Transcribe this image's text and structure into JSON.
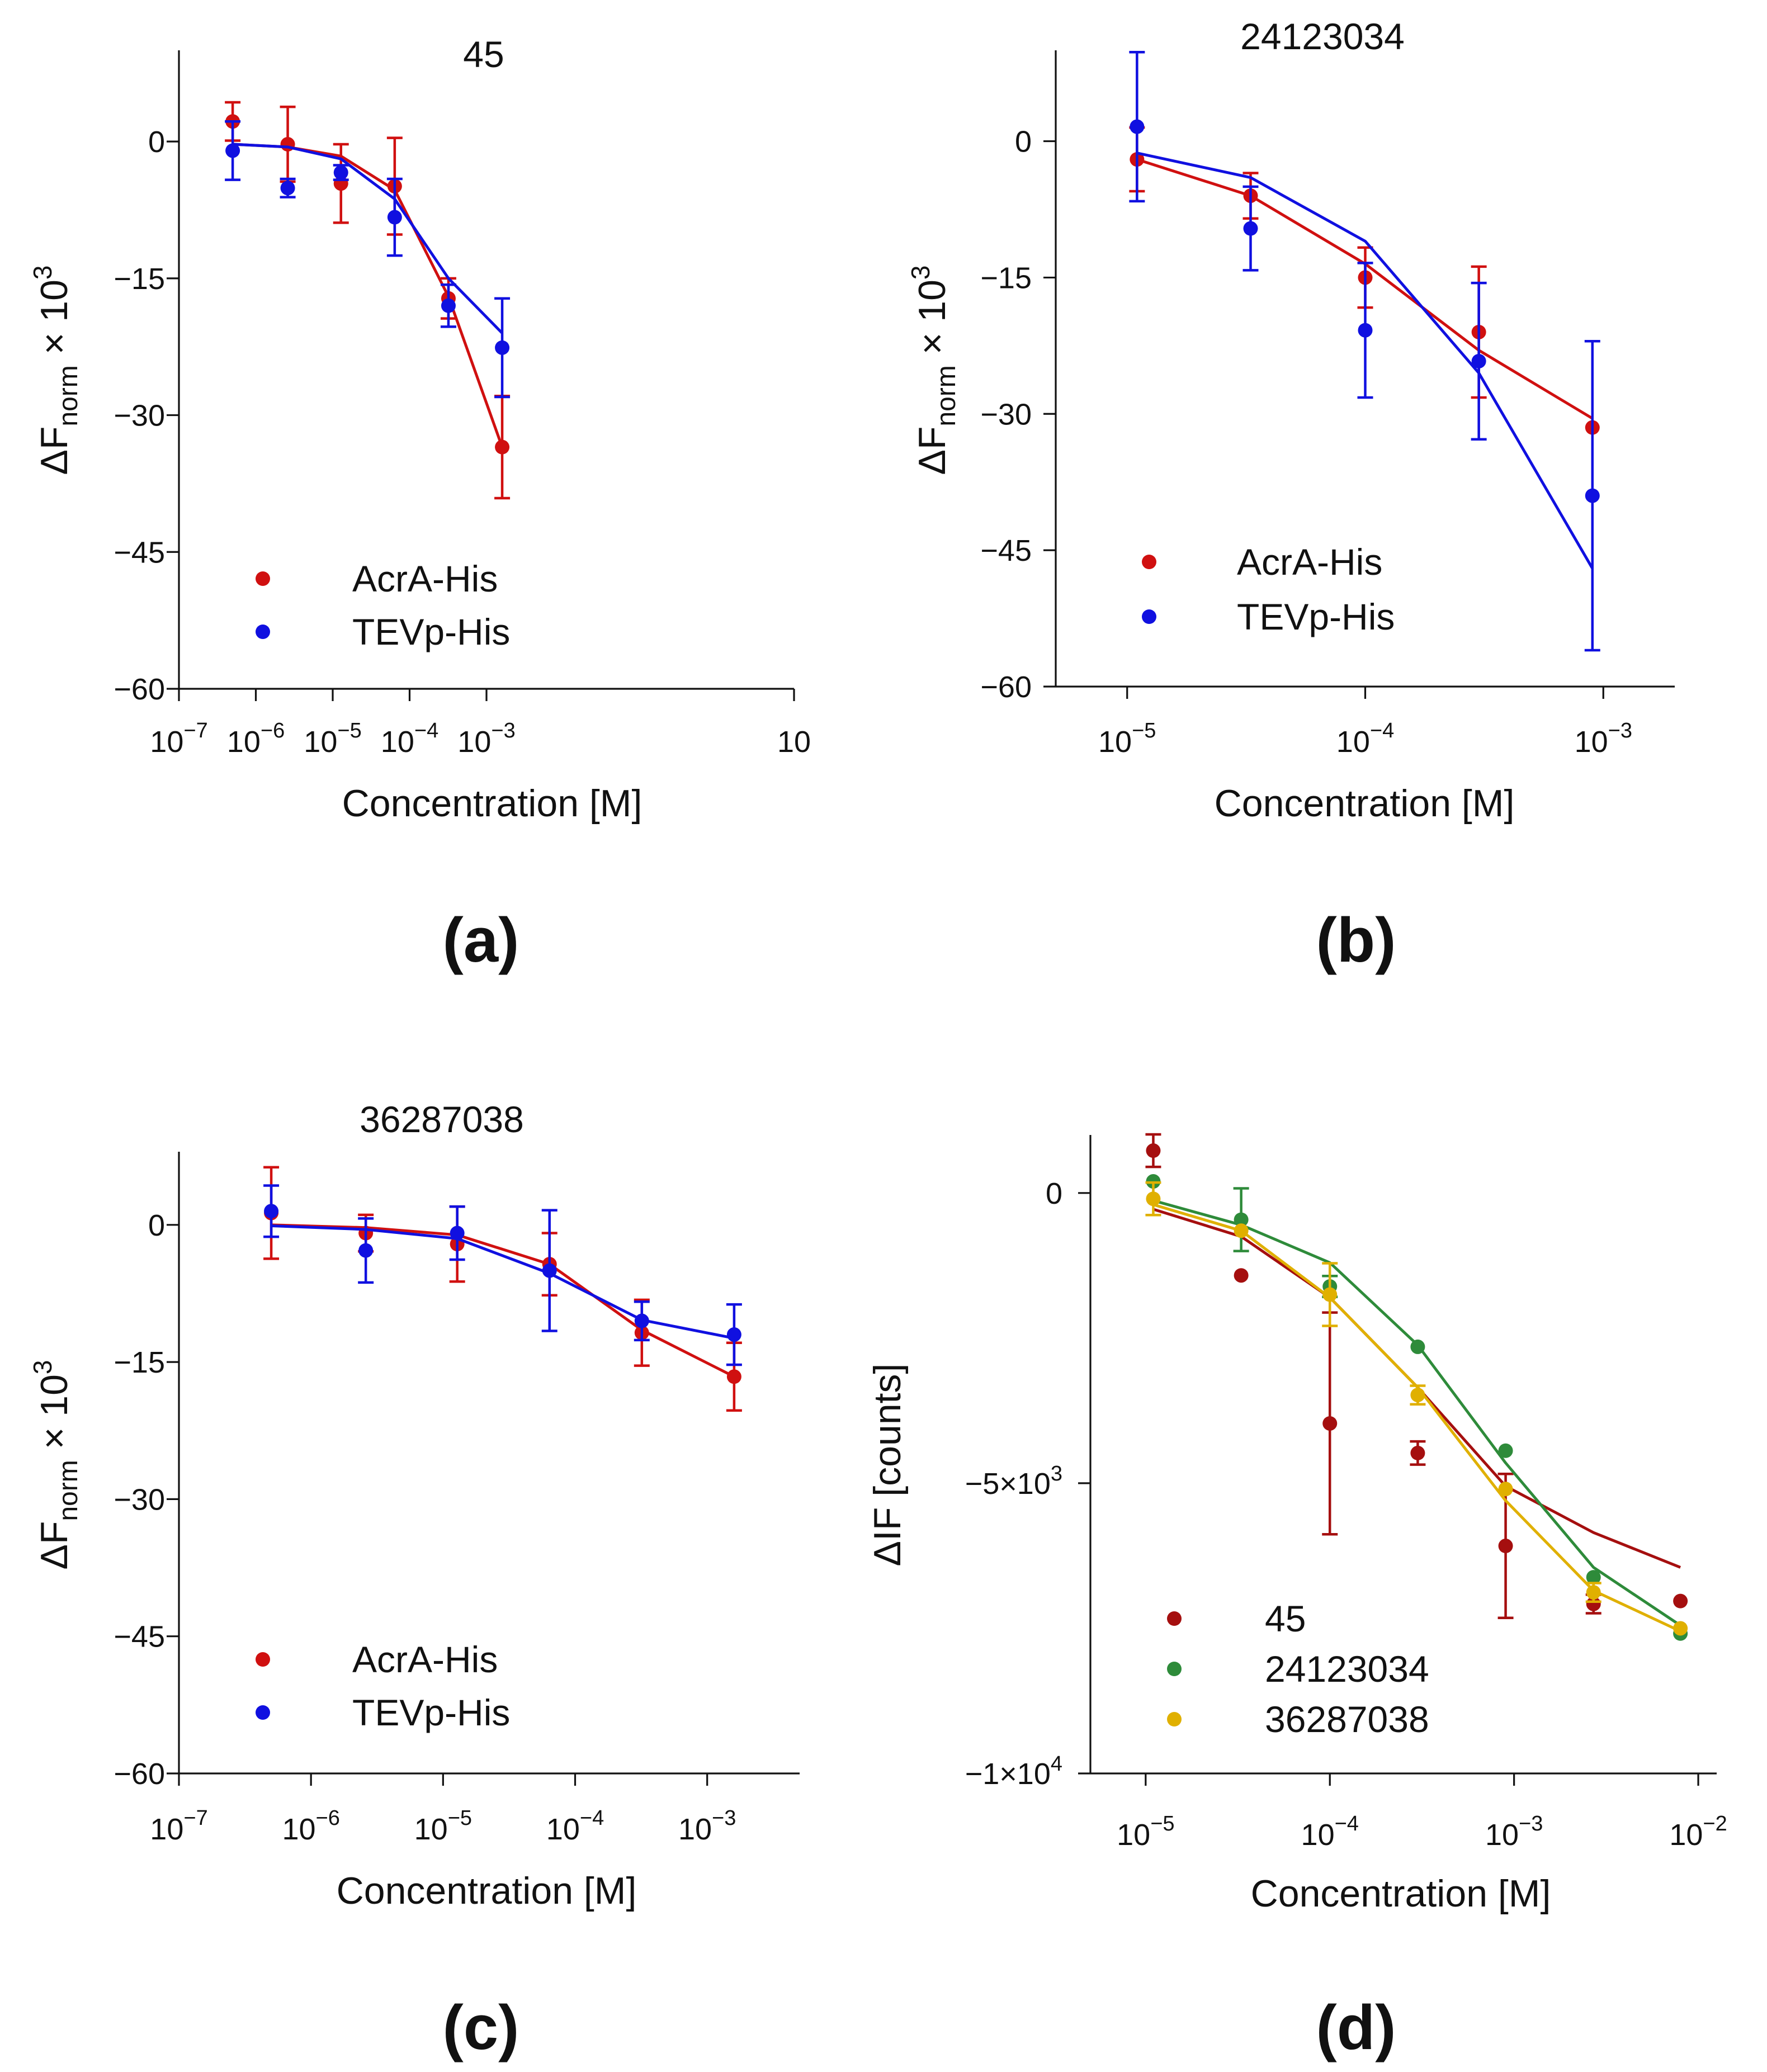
{
  "chart_data": [
    {
      "panel_label": "(a)",
      "type": "scatter",
      "title": "45",
      "xlabel": "Concentration [M]",
      "ylabel": "ΔFnorm × 10³",
      "ylabel_parts": {
        "base": "ΔF",
        "sub": "norm",
        "mid": " × 10",
        "sup": "3"
      },
      "xscale": "log",
      "xlim_log10": [
        -7,
        1
      ],
      "ylim": [
        -60,
        10
      ],
      "xticks": [
        {
          "exp": -7,
          "base": "10",
          "sup": "−7"
        },
        {
          "exp": -6,
          "base": "10",
          "sup": "−6"
        },
        {
          "exp": -5,
          "base": "10",
          "sup": "−5"
        },
        {
          "exp": -4,
          "base": "10",
          "sup": "−4"
        },
        {
          "exp": -3,
          "base": "10",
          "sup": "−3"
        },
        {
          "exp": 1,
          "base": "10",
          "sup": ""
        }
      ],
      "yticks": [
        {
          "value": 0,
          "label": "0"
        },
        {
          "value": -15,
          "label": "−15"
        },
        {
          "value": -30,
          "label": "−30"
        },
        {
          "value": -45,
          "label": "−45"
        },
        {
          "value": -60,
          "label": "−60"
        }
      ],
      "legend_position": "bottom-left",
      "series": [
        {
          "name": "AcrA-His",
          "color": "#d01010",
          "x": [
            5e-07,
            2.6e-06,
            1.28e-05,
            6.4e-05,
            0.00032,
            0.0016
          ],
          "y": [
            2.2,
            -0.3,
            -4.6,
            -4.9,
            -17.2,
            -33.5
          ],
          "err": [
            2.1,
            4.1,
            4.3,
            5.3,
            2.2,
            5.6
          ],
          "fit_y": [
            -0.3,
            -0.6,
            -1.6,
            -5.3,
            -17.0,
            -33.5
          ]
        },
        {
          "name": "TEVp-His",
          "color": "#1010e0",
          "x": [
            5e-07,
            2.6e-06,
            1.28e-05,
            6.4e-05,
            0.00032,
            0.0016
          ],
          "y": [
            -1.0,
            -5.1,
            -3.4,
            -8.3,
            -18.0,
            -22.6
          ],
          "err": [
            3.2,
            1.0,
            0.8,
            4.2,
            2.3,
            5.4
          ],
          "fit_y": [
            -0.3,
            -0.6,
            -1.9,
            -6.3,
            -15.0,
            -21.0
          ]
        }
      ]
    },
    {
      "panel_label": "(b)",
      "type": "scatter",
      "title": "24123034",
      "xlabel": "Concentration [M]",
      "ylabel": "ΔFnorm × 10³",
      "ylabel_parts": {
        "base": "ΔF",
        "sub": "norm",
        "mid": " × 10",
        "sup": "3"
      },
      "xscale": "log",
      "xlim_log10": [
        -5.3,
        -2.7
      ],
      "ylim": [
        -60,
        10
      ],
      "xticks": [
        {
          "exp": -5,
          "base": "10",
          "sup": "−5"
        },
        {
          "exp": -4,
          "base": "10",
          "sup": "−4"
        },
        {
          "exp": -3,
          "base": "10",
          "sup": "−3"
        }
      ],
      "yticks": [
        {
          "value": 0,
          "label": "0"
        },
        {
          "value": -15,
          "label": "−15"
        },
        {
          "value": -30,
          "label": "−30"
        },
        {
          "value": -45,
          "label": "−45"
        },
        {
          "value": -60,
          "label": "−60"
        }
      ],
      "legend_position": "bottom-left",
      "series": [
        {
          "name": "AcrA-His",
          "color": "#d01010",
          "x": [
            1.1e-05,
            3.3e-05,
            0.0001,
            0.0003,
            0.0009
          ],
          "y": [
            -2.0,
            -6.0,
            -15.0,
            -21.0,
            -31.5
          ],
          "err": [
            3.5,
            2.5,
            3.3,
            7.2,
            0
          ],
          "fit_y": [
            -2.0,
            -6.0,
            -13.5,
            -23.0,
            -30.5
          ]
        },
        {
          "name": "TEVp-His",
          "color": "#1010e0",
          "x": [
            1.1e-05,
            3.3e-05,
            0.0001,
            0.0003,
            0.0009
          ],
          "y": [
            1.6,
            -9.6,
            -20.8,
            -24.2,
            -39.0
          ],
          "err": [
            8.2,
            4.6,
            7.4,
            8.6,
            17.0
          ],
          "fit_y": [
            -1.3,
            -4.0,
            -11.0,
            -25.5,
            -47.0
          ]
        }
      ]
    },
    {
      "panel_label": "(c)",
      "type": "scatter",
      "title": "36287038",
      "xlabel": "Concentration [M]",
      "ylabel": "ΔFnorm × 10³",
      "ylabel_parts": {
        "base": "ΔF",
        "sub": "norm",
        "mid": " × 10",
        "sup": "3"
      },
      "xscale": "log",
      "xlim_log10": [
        -7,
        -2.3
      ],
      "ylim": [
        -60,
        8
      ],
      "xticks": [
        {
          "exp": -7,
          "base": "10",
          "sup": "−7"
        },
        {
          "exp": -6,
          "base": "10",
          "sup": "−6"
        },
        {
          "exp": -5,
          "base": "10",
          "sup": "−5"
        },
        {
          "exp": -4,
          "base": "10",
          "sup": "−4"
        },
        {
          "exp": -3,
          "base": "10",
          "sup": "−3"
        }
      ],
      "yticks": [
        {
          "value": 0,
          "label": "0"
        },
        {
          "value": -15,
          "label": "−15"
        },
        {
          "value": -30,
          "label": "−30"
        },
        {
          "value": -45,
          "label": "−45"
        },
        {
          "value": -60,
          "label": "−60"
        }
      ],
      "legend_position": "bottom-left",
      "series": [
        {
          "name": "AcrA-His",
          "color": "#d01010",
          "x": [
            5e-07,
            2.6e-06,
            1.28e-05,
            6.4e-05,
            0.00032,
            0.0016
          ],
          "y": [
            1.3,
            -0.9,
            -2.1,
            -4.3,
            -11.8,
            -16.6
          ],
          "err": [
            5.0,
            2.0,
            4.1,
            3.4,
            3.6,
            3.7
          ],
          "fit_y": [
            0.0,
            -0.3,
            -1.1,
            -4.3,
            -11.5,
            -16.6
          ]
        },
        {
          "name": "TEVp-His",
          "color": "#1010e0",
          "x": [
            5e-07,
            2.6e-06,
            1.28e-05,
            6.4e-05,
            0.00032,
            0.0016
          ],
          "y": [
            1.5,
            -2.8,
            -0.9,
            -5.0,
            -10.5,
            -12.0
          ],
          "err": [
            2.8,
            3.5,
            2.9,
            6.6,
            2.1,
            3.3
          ],
          "fit_y": [
            -0.1,
            -0.5,
            -1.5,
            -5.3,
            -10.4,
            -12.4
          ]
        }
      ]
    },
    {
      "panel_label": "(d)",
      "type": "scatter",
      "title": "",
      "xlabel": "Concentration [M]",
      "ylabel": "ΔIF [counts]",
      "xscale": "log",
      "xlim_log10": [
        -5.3,
        -1.9
      ],
      "ylim": [
        -10000,
        1000
      ],
      "xticks": [
        {
          "exp": -5,
          "base": "10",
          "sup": "−5"
        },
        {
          "exp": -4,
          "base": "10",
          "sup": "−4"
        },
        {
          "exp": -3,
          "base": "10",
          "sup": "−3"
        },
        {
          "exp": -2,
          "base": "10",
          "sup": "−2"
        }
      ],
      "yticks": [
        {
          "value": 0,
          "label": "0"
        },
        {
          "value": -5000,
          "label": "−5×10",
          "sup": "3"
        },
        {
          "value": -10000,
          "label": "−1×10",
          "sup": "4"
        }
      ],
      "legend_position": "bottom-left",
      "series": [
        {
          "name": "45",
          "color": "#a50f0f",
          "x": [
            1.1e-05,
            3.3e-05,
            0.0001,
            0.0003,
            0.0009,
            0.0027,
            0.008
          ],
          "y": [
            730,
            -1420,
            -3970,
            -4480,
            -6080,
            -7080,
            -7030
          ],
          "err": [
            280,
            0,
            1910,
            200,
            1240,
            160,
            0
          ],
          "fit_y": [
            -280,
            -750,
            -1800,
            -3350,
            -5050,
            -5850,
            -6450
          ]
        },
        {
          "name": "24123034",
          "color": "#2e8b3a",
          "x": [
            1.1e-05,
            3.3e-05,
            0.0001,
            0.0003,
            0.0009,
            0.0027,
            0.008
          ],
          "y": [
            200,
            -460,
            -1610,
            -2650,
            -4440,
            -6620,
            -7590
          ],
          "err": [
            0,
            540,
            180,
            0,
            0,
            0,
            0
          ],
          "fit_y": [
            -130,
            -550,
            -1200,
            -2620,
            -4650,
            -6450,
            -7450
          ]
        },
        {
          "name": "36287038",
          "color": "#e0b000",
          "x": [
            1.1e-05,
            3.3e-05,
            0.0001,
            0.0003,
            0.0009,
            0.0027,
            0.008
          ],
          "y": [
            -100,
            -650,
            -1750,
            -3480,
            -5100,
            -6880,
            -7500
          ],
          "err": [
            280,
            0,
            540,
            160,
            0,
            160,
            0
          ],
          "fit_y": [
            -200,
            -650,
            -1800,
            -3350,
            -5300,
            -6850,
            -7550
          ]
        }
      ]
    }
  ]
}
